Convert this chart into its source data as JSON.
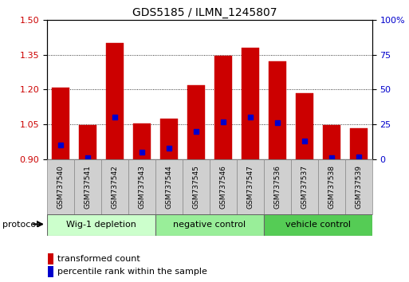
{
  "title": "GDS5185 / ILMN_1245807",
  "samples": [
    "GSM737540",
    "GSM737541",
    "GSM737542",
    "GSM737543",
    "GSM737544",
    "GSM737545",
    "GSM737546",
    "GSM737547",
    "GSM737536",
    "GSM737537",
    "GSM737538",
    "GSM737539"
  ],
  "transformed_count": [
    1.207,
    1.046,
    1.4,
    1.055,
    1.075,
    1.22,
    1.345,
    1.38,
    1.32,
    1.185,
    1.046,
    1.035
  ],
  "percentile_rank": [
    10,
    1,
    30,
    5,
    8,
    20,
    27,
    30,
    26,
    13,
    1,
    2
  ],
  "groups": [
    {
      "label": "Wig-1 depletion",
      "indices": [
        0,
        1,
        2,
        3
      ],
      "color": "#ccffcc"
    },
    {
      "label": "negative control",
      "indices": [
        4,
        5,
        6,
        7
      ],
      "color": "#99ee99"
    },
    {
      "label": "vehicle control",
      "indices": [
        8,
        9,
        10,
        11
      ],
      "color": "#55cc55"
    }
  ],
  "bar_color": "#cc0000",
  "percentile_color": "#0000cc",
  "ylim_left": [
    0.9,
    1.5
  ],
  "ylim_right": [
    0,
    100
  ],
  "yticks_left": [
    0.9,
    1.05,
    1.2,
    1.35,
    1.5
  ],
  "yticks_right": [
    0,
    25,
    50,
    75,
    100
  ],
  "left_tick_color": "#cc0000",
  "right_tick_color": "#0000cc",
  "bar_width": 0.65,
  "protocol_label": "protocol"
}
